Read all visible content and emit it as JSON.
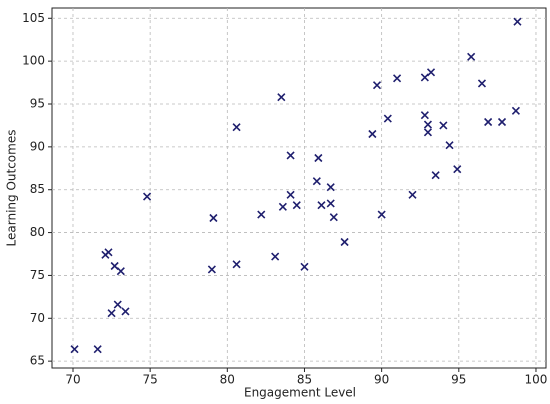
{
  "chart_data": {
    "type": "scatter",
    "x_label": "Engagement Level",
    "y_label": "Learning Outcomes",
    "xlim": [
      68.64,
      100.65
    ],
    "ylim": [
      64.2,
      106.2
    ],
    "xticks": [
      70,
      75,
      80,
      85,
      90,
      95,
      100
    ],
    "yticks": [
      65,
      70,
      75,
      80,
      85,
      90,
      95,
      100,
      105
    ],
    "grid": true,
    "color": "#1f1f6e",
    "x": [
      70.1,
      71.6,
      72.1,
      72.3,
      72.7,
      73.1,
      72.5,
      72.9,
      73.4,
      74.8,
      79.1,
      79.0,
      80.6,
      80.6,
      82.2,
      83.1,
      83.5,
      83.6,
      84.1,
      84.1,
      84.5,
      85.0,
      85.8,
      85.9,
      86.1,
      86.7,
      86.7,
      86.9,
      87.6,
      89.4,
      89.7,
      90.0,
      90.4,
      91.0,
      92.0,
      92.8,
      93.2,
      92.8,
      93.0,
      93.0,
      93.5,
      94.0,
      94.4,
      94.9,
      95.8,
      96.5,
      96.9,
      97.8,
      98.7,
      98.8
    ],
    "values": [
      66.4,
      66.4,
      77.4,
      77.7,
      76.1,
      75.5,
      70.6,
      71.6,
      70.8,
      84.2,
      81.7,
      75.7,
      92.3,
      76.3,
      82.1,
      77.2,
      95.8,
      83.0,
      89.0,
      84.4,
      83.2,
      76.0,
      86.0,
      88.7,
      83.2,
      85.3,
      83.4,
      81.8,
      78.9,
      91.5,
      97.2,
      82.1,
      93.3,
      98.0,
      84.4,
      98.1,
      98.7,
      93.7,
      92.6,
      91.7,
      86.7,
      92.5,
      90.2,
      87.4,
      100.5,
      97.4,
      92.9,
      92.9,
      94.2,
      104.6
    ]
  }
}
